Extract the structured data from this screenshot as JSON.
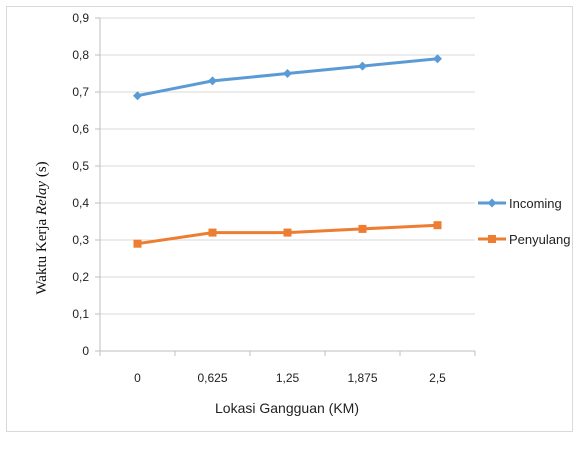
{
  "chart_data": {
    "type": "line",
    "categories": [
      "0",
      "0,625",
      "1,25",
      "1,875",
      "2,5"
    ],
    "series": [
      {
        "name": "Incoming",
        "values": [
          0.69,
          0.73,
          0.75,
          0.77,
          0.79
        ],
        "color": "#5b9bd5",
        "marker": "diamond"
      },
      {
        "name": "Penyulang",
        "values": [
          0.29,
          0.32,
          0.32,
          0.33,
          0.34
        ],
        "color": "#ed7d31",
        "marker": "square"
      }
    ],
    "ylim": [
      0,
      0.9
    ],
    "yticks": [
      "0",
      "0,1",
      "0,2",
      "0,3",
      "0,4",
      "0,5",
      "0,6",
      "0,7",
      "0,8",
      "0,9"
    ],
    "xlabel": "Lokasi Gangguan (KM)",
    "ylabel": {
      "prefix": "Waktu Kerja ",
      "italic": "Relay",
      "suffix": " (s)"
    },
    "grid": true,
    "legend_position": "right"
  }
}
